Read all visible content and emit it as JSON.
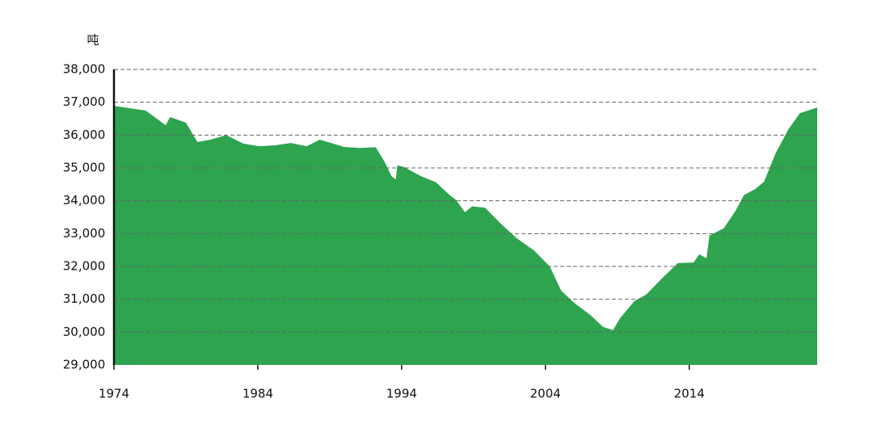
{
  "chart_data": {
    "type": "area",
    "y_label": "吨",
    "color": "#2ea44f",
    "grid": true,
    "x": [
      1974,
      1976.2,
      1977.6,
      1977.9,
      1979,
      1979.8,
      1980.7,
      1981.8,
      1983,
      1984.1,
      1985.2,
      1986.3,
      1987.4,
      1988.3,
      1989.1,
      1990,
      1991.1,
      1992.2,
      1992.8,
      1993.3,
      1993.6,
      1993.7,
      1994.2,
      1995.3,
      1996.4,
      1997.3,
      1997.8,
      1998.4,
      1998.9,
      1999.8,
      2000.9,
      2002,
      2003.2,
      2004.3,
      2005.1,
      2006,
      2007.1,
      2008,
      2008.7,
      2009.2,
      2010.2,
      2011,
      2012.1,
      2013.2,
      2014.3,
      2014.7,
      2015.2,
      2015.4,
      2016.4,
      2017.2,
      2017.8,
      2018.6,
      2019.2,
      2020,
      2020.9,
      2021.7,
      2022.9
    ],
    "values": [
      36890,
      36750,
      36300,
      36550,
      36380,
      35790,
      35860,
      36000,
      35740,
      35660,
      35690,
      35760,
      35660,
      35860,
      35760,
      35640,
      35610,
      35630,
      35200,
      34750,
      34650,
      35080,
      35020,
      34760,
      34560,
      34190,
      34020,
      33650,
      33830,
      33790,
      33300,
      32860,
      32490,
      32000,
      31260,
      30890,
      30530,
      30160,
      30060,
      30430,
      30950,
      31140,
      31630,
      32100,
      32120,
      32370,
      32250,
      32940,
      33160,
      33680,
      34170,
      34360,
      34580,
      35440,
      36180,
      36670,
      36840
    ],
    "xlim": [
      1974,
      2022.9
    ],
    "xticks": [
      1974,
      1984,
      1994,
      2004,
      2014
    ],
    "ylim": [
      29000,
      38000
    ],
    "yticks": [
      {
        "value": 29000,
        "label": "29,000"
      },
      {
        "value": 30000,
        "label": "30,000"
      },
      {
        "value": 31000,
        "label": "31,000"
      },
      {
        "value": 32000,
        "label": "32,000"
      },
      {
        "value": 33000,
        "label": "33,000"
      },
      {
        "value": 34000,
        "label": "34,000"
      },
      {
        "value": 35000,
        "label": "35,000"
      },
      {
        "value": 36000,
        "label": "36,000"
      },
      {
        "value": 37000,
        "label": "37,000"
      },
      {
        "value": 38000,
        "label": "38,000"
      }
    ]
  }
}
